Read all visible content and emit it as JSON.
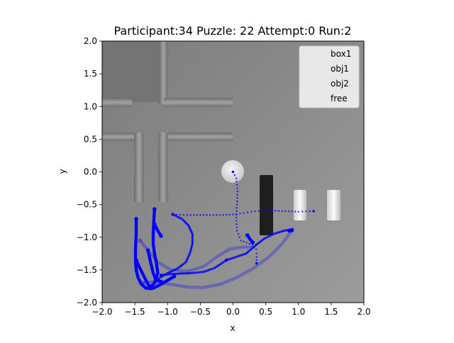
{
  "chart_data": {
    "type": "scatter",
    "title": "Participant:34 Puzzle: 22 Attempt:0 Run:2",
    "xlabel": "x",
    "ylabel": "y",
    "xlim": [
      -2.0,
      2.0
    ],
    "ylim": [
      -2.0,
      2.0
    ],
    "x_ticks": [
      "−2.0",
      "−1.5",
      "−1.0",
      "−0.5",
      "0.0",
      "0.5",
      "1.0",
      "1.5",
      "2.0"
    ],
    "y_ticks": [
      "−2.0",
      "−1.5",
      "−1.0",
      "−0.5",
      "0.0",
      "0.5",
      "1.0",
      "1.5",
      "2.0"
    ],
    "legend": {
      "placement": "top-right",
      "entries": [
        "box1",
        "obj1",
        "obj2",
        "free"
      ]
    },
    "background": "grayscale top-down scene image",
    "series": [
      {
        "color": "#0000ff",
        "style": "dense",
        "points": [
          [
            -1.48,
            -0.72
          ],
          [
            -1.48,
            -0.95
          ],
          [
            -1.49,
            -1.2
          ],
          [
            -1.49,
            -1.35
          ],
          [
            -1.48,
            -1.5
          ],
          [
            -1.45,
            -1.62
          ],
          [
            -1.4,
            -1.72
          ],
          [
            -1.33,
            -1.78
          ],
          [
            -1.22,
            -1.78
          ],
          [
            -1.1,
            -1.72
          ],
          [
            -1.0,
            -1.66
          ],
          [
            -0.9,
            -1.6
          ]
        ]
      },
      {
        "color": "#0000ff",
        "style": "dense",
        "points": [
          [
            -1.2,
            -0.57
          ],
          [
            -1.21,
            -0.75
          ],
          [
            -1.22,
            -0.95
          ],
          [
            -1.22,
            -1.1
          ],
          [
            -1.2,
            -1.25
          ],
          [
            -1.17,
            -1.4
          ],
          [
            -1.15,
            -1.55
          ],
          [
            -1.2,
            -1.7
          ],
          [
            -1.28,
            -1.78
          ]
        ]
      },
      {
        "color": "#0000ff",
        "style": "dense",
        "points": [
          [
            -1.48,
            -1.35
          ],
          [
            -1.42,
            -1.48
          ],
          [
            -1.36,
            -1.6
          ],
          [
            -1.3,
            -1.72
          ],
          [
            -1.25,
            -1.78
          ]
        ]
      },
      {
        "color": "#0000ff",
        "style": "dense",
        "points": [
          [
            -1.3,
            -1.2
          ],
          [
            -1.26,
            -1.38
          ],
          [
            -1.22,
            -1.55
          ],
          [
            -1.18,
            -1.65
          ],
          [
            -1.1,
            -1.68
          ]
        ]
      },
      {
        "color": "#0000ff",
        "style": "dense",
        "points": [
          [
            -1.2,
            -0.8
          ],
          [
            -1.15,
            -0.9
          ],
          [
            -1.1,
            -0.98
          ]
        ]
      },
      {
        "color": "#0000ff",
        "style": "medium",
        "points": [
          [
            -0.92,
            -0.65
          ],
          [
            -0.78,
            -0.72
          ],
          [
            -0.68,
            -0.82
          ],
          [
            -0.62,
            -0.95
          ],
          [
            -0.62,
            -1.1
          ],
          [
            -0.66,
            -1.25
          ],
          [
            -0.72,
            -1.38
          ],
          [
            -0.85,
            -1.48
          ],
          [
            -1.0,
            -1.55
          ],
          [
            -1.12,
            -1.62
          ],
          [
            -1.2,
            -1.7
          ]
        ]
      },
      {
        "color": "#0000ff",
        "style": "medium",
        "points": [
          [
            -1.1,
            -1.58
          ],
          [
            -0.9,
            -1.56
          ],
          [
            -0.65,
            -1.55
          ],
          [
            -0.45,
            -1.53
          ],
          [
            -0.28,
            -1.47
          ],
          [
            -0.1,
            -1.35
          ]
        ]
      },
      {
        "color": "#0000ff",
        "style": "medium",
        "points": [
          [
            -0.1,
            -1.35
          ],
          [
            0.05,
            -1.3
          ],
          [
            0.2,
            -1.25
          ],
          [
            0.35,
            -1.12
          ],
          [
            0.48,
            -1.02
          ],
          [
            0.62,
            -0.95
          ],
          [
            0.78,
            -0.9
          ],
          [
            0.9,
            -0.88
          ]
        ]
      },
      {
        "color": "#0000ff",
        "style": "sparse",
        "points": [
          [
            -0.92,
            -0.65
          ],
          [
            -0.7,
            -0.66
          ],
          [
            -0.45,
            -0.66
          ],
          [
            -0.2,
            -0.66
          ],
          [
            0.05,
            -0.65
          ],
          [
            0.28,
            -0.61
          ],
          [
            0.5,
            -0.59
          ],
          [
            0.75,
            -0.6
          ],
          [
            1.0,
            -0.61
          ],
          [
            1.23,
            -0.6
          ]
        ]
      },
      {
        "color": "#0000ff",
        "style": "faint",
        "points": [
          [
            -1.38,
            -1.7
          ],
          [
            -1.2,
            -1.68
          ],
          [
            -0.95,
            -1.72
          ],
          [
            -0.7,
            -1.76
          ],
          [
            -0.45,
            -1.77
          ],
          [
            -0.2,
            -1.72
          ],
          [
            0.05,
            -1.62
          ],
          [
            0.3,
            -1.48
          ],
          [
            0.55,
            -1.3
          ],
          [
            0.75,
            -1.1
          ],
          [
            0.9,
            -0.9
          ]
        ]
      },
      {
        "color": "#0000ff",
        "style": "faint",
        "points": [
          [
            -1.42,
            -1.05
          ],
          [
            -1.3,
            -1.2
          ],
          [
            -1.15,
            -1.38
          ],
          [
            -0.95,
            -1.5
          ],
          [
            -0.7,
            -1.52
          ],
          [
            -0.45,
            -1.45
          ],
          [
            -0.25,
            -1.3
          ],
          [
            -0.05,
            -1.18
          ],
          [
            0.15,
            -1.15
          ],
          [
            0.3,
            -1.15
          ]
        ]
      },
      {
        "color": "#0000ff",
        "style": "sparse",
        "points": [
          [
            0.0,
            0.0
          ],
          [
            0.05,
            -0.1
          ],
          [
            0.07,
            -0.3
          ],
          [
            0.06,
            -0.5
          ],
          [
            0.05,
            -0.7
          ],
          [
            0.06,
            -0.9
          ],
          [
            0.12,
            -1.05
          ],
          [
            0.25,
            -1.1
          ],
          [
            0.35,
            -1.12
          ],
          [
            0.36,
            -1.25
          ],
          [
            0.36,
            -1.4
          ]
        ]
      },
      {
        "color": "#0000ff",
        "style": "dense",
        "points": [
          [
            0.22,
            -0.97
          ],
          [
            0.26,
            -1.03
          ],
          [
            0.3,
            -1.08
          ]
        ]
      },
      {
        "color": "#0000ff",
        "style": "dense",
        "points": [
          [
            0.86,
            -0.9
          ],
          [
            0.9,
            -0.89
          ]
        ]
      }
    ]
  }
}
